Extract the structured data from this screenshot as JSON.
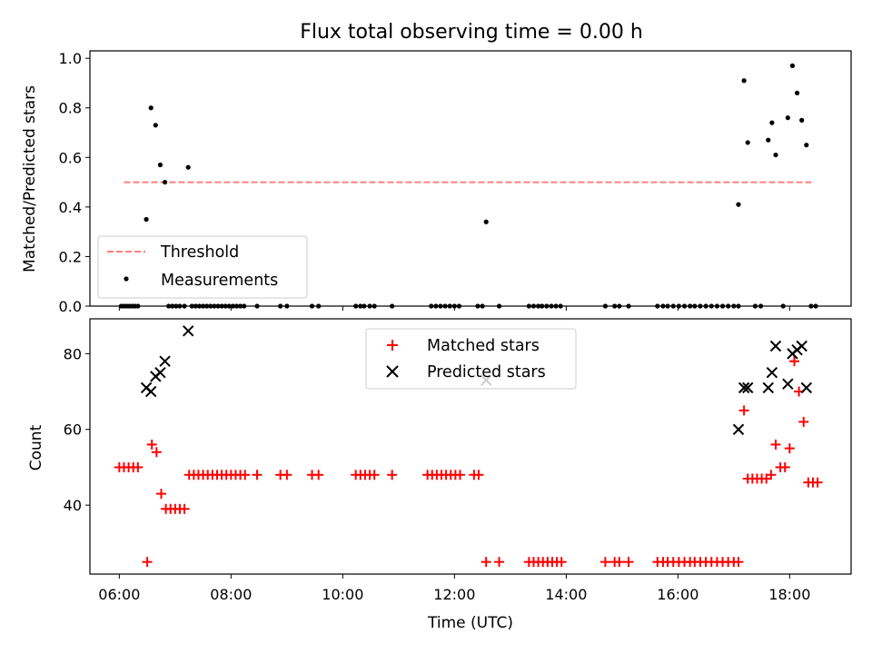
{
  "title": "Flux total observing time = 0.00 h",
  "chart_data": [
    {
      "type": "scatter",
      "ylabel": "Matched/Predicted stars",
      "ylim": [
        0,
        1.03
      ],
      "yticks": [
        0.0,
        0.2,
        0.4,
        0.6,
        0.8,
        1.0
      ],
      "yticklabels": [
        "0.0",
        "0.2",
        "0.4",
        "0.6",
        "0.8",
        "1.0"
      ],
      "legend_loc": "lower left",
      "series": [
        {
          "name": "Threshold",
          "kind": "line",
          "style": "dashed",
          "color": "#ff7f7f",
          "x": [
            "06:05",
            "18:25"
          ],
          "y": [
            0.5,
            0.5
          ]
        },
        {
          "name": "Measurements",
          "kind": "point",
          "color": "#000000",
          "points": [
            [
              "06:02",
              0
            ],
            [
              "06:05",
              0
            ],
            [
              "06:08",
              0
            ],
            [
              "06:11",
              0
            ],
            [
              "06:14",
              0
            ],
            [
              "06:17",
              0
            ],
            [
              "06:20",
              0
            ],
            [
              "06:29",
              0.35
            ],
            [
              "06:34",
              0.8
            ],
            [
              "06:39",
              0.73
            ],
            [
              "06:44",
              0.57
            ],
            [
              "06:49",
              0.5
            ],
            [
              "07:14",
              0.56
            ],
            [
              "06:53",
              0
            ],
            [
              "06:57",
              0
            ],
            [
              "07:01",
              0
            ],
            [
              "07:05",
              0
            ],
            [
              "07:10",
              0
            ],
            [
              "07:18",
              0
            ],
            [
              "07:22",
              0
            ],
            [
              "07:26",
              0
            ],
            [
              "07:30",
              0
            ],
            [
              "07:34",
              0
            ],
            [
              "07:38",
              0
            ],
            [
              "07:42",
              0
            ],
            [
              "07:46",
              0
            ],
            [
              "07:50",
              0
            ],
            [
              "07:54",
              0
            ],
            [
              "07:58",
              0
            ],
            [
              "08:02",
              0
            ],
            [
              "08:06",
              0
            ],
            [
              "08:10",
              0
            ],
            [
              "08:14",
              0
            ],
            [
              "08:28",
              0
            ],
            [
              "08:53",
              0
            ],
            [
              "09:00",
              0
            ],
            [
              "09:27",
              0
            ],
            [
              "09:34",
              0
            ],
            [
              "10:14",
              0
            ],
            [
              "10:19",
              0
            ],
            [
              "10:23",
              0
            ],
            [
              "10:29",
              0
            ],
            [
              "10:34",
              0
            ],
            [
              "10:53",
              0
            ],
            [
              "11:35",
              0
            ],
            [
              "11:40",
              0
            ],
            [
              "11:45",
              0
            ],
            [
              "11:50",
              0
            ],
            [
              "11:55",
              0
            ],
            [
              "12:00",
              0
            ],
            [
              "12:05",
              0
            ],
            [
              "12:25",
              0
            ],
            [
              "12:30",
              0
            ],
            [
              "12:34",
              0.34
            ],
            [
              "12:48",
              0
            ],
            [
              "13:20",
              0
            ],
            [
              "13:25",
              0
            ],
            [
              "13:30",
              0
            ],
            [
              "13:34",
              0
            ],
            [
              "13:39",
              0
            ],
            [
              "13:44",
              0
            ],
            [
              "13:49",
              0
            ],
            [
              "13:54",
              0
            ],
            [
              "14:42",
              0
            ],
            [
              "14:52",
              0
            ],
            [
              "14:57",
              0
            ],
            [
              "15:07",
              0
            ],
            [
              "15:38",
              0
            ],
            [
              "15:44",
              0
            ],
            [
              "15:49",
              0
            ],
            [
              "15:55",
              0
            ],
            [
              "16:01",
              0
            ],
            [
              "16:07",
              0
            ],
            [
              "16:13",
              0
            ],
            [
              "16:18",
              0
            ],
            [
              "16:24",
              0
            ],
            [
              "16:30",
              0
            ],
            [
              "16:36",
              0
            ],
            [
              "16:42",
              0
            ],
            [
              "16:48",
              0
            ],
            [
              "16:54",
              0
            ],
            [
              "17:00",
              0
            ],
            [
              "17:05",
              0
            ],
            [
              "17:05",
              0.41
            ],
            [
              "17:11",
              0.91
            ],
            [
              "17:15",
              0.66
            ],
            [
              "17:23",
              0
            ],
            [
              "17:29",
              0
            ],
            [
              "17:37",
              0.67
            ],
            [
              "17:41",
              0.74
            ],
            [
              "17:45",
              0.61
            ],
            [
              "17:53",
              0
            ],
            [
              "17:58",
              0.76
            ],
            [
              "18:03",
              0.97
            ],
            [
              "18:08",
              0.86
            ],
            [
              "18:13",
              0.75
            ],
            [
              "18:18",
              0.65
            ],
            [
              "18:23",
              0
            ],
            [
              "18:28",
              0
            ]
          ]
        }
      ]
    },
    {
      "type": "scatter",
      "xlabel": "Time (UTC)",
      "ylabel": "Count",
      "xticklabels": [
        "06:00",
        "08:00",
        "10:00",
        "12:00",
        "14:00",
        "16:00",
        "18:00"
      ],
      "yticks": [
        40,
        60,
        80
      ],
      "yticklabels": [
        "40",
        "60",
        "80"
      ],
      "ylim": [
        21.8,
        89.2
      ],
      "legend_loc": "upper center",
      "series": [
        {
          "name": "Matched stars",
          "marker": "+",
          "color": "#ff0000",
          "points": [
            [
              "06:00",
              50
            ],
            [
              "06:05",
              50
            ],
            [
              "06:10",
              50
            ],
            [
              "06:15",
              50
            ],
            [
              "06:20",
              50
            ],
            [
              "06:30",
              25
            ],
            [
              "06:35",
              56
            ],
            [
              "06:40",
              54
            ],
            [
              "06:45",
              43
            ],
            [
              "06:50",
              39
            ],
            [
              "06:55",
              39
            ],
            [
              "07:00",
              39
            ],
            [
              "07:05",
              39
            ],
            [
              "07:10",
              39
            ],
            [
              "07:15",
              48
            ],
            [
              "07:20",
              48
            ],
            [
              "07:25",
              48
            ],
            [
              "07:30",
              48
            ],
            [
              "07:35",
              48
            ],
            [
              "07:40",
              48
            ],
            [
              "07:45",
              48
            ],
            [
              "07:50",
              48
            ],
            [
              "07:55",
              48
            ],
            [
              "08:00",
              48
            ],
            [
              "08:05",
              48
            ],
            [
              "08:10",
              48
            ],
            [
              "08:15",
              48
            ],
            [
              "08:28",
              48
            ],
            [
              "08:53",
              48
            ],
            [
              "09:00",
              48
            ],
            [
              "09:27",
              48
            ],
            [
              "09:34",
              48
            ],
            [
              "10:14",
              48
            ],
            [
              "10:19",
              48
            ],
            [
              "10:24",
              48
            ],
            [
              "10:29",
              48
            ],
            [
              "10:34",
              48
            ],
            [
              "10:53",
              48
            ],
            [
              "11:31",
              48
            ],
            [
              "11:36",
              48
            ],
            [
              "11:41",
              48
            ],
            [
              "11:46",
              48
            ],
            [
              "11:51",
              48
            ],
            [
              "11:56",
              48
            ],
            [
              "12:01",
              48
            ],
            [
              "12:06",
              48
            ],
            [
              "12:21",
              48
            ],
            [
              "12:26",
              48
            ],
            [
              "12:34",
              25
            ],
            [
              "12:48",
              25
            ],
            [
              "13:20",
              25
            ],
            [
              "13:25",
              25
            ],
            [
              "13:30",
              25
            ],
            [
              "13:35",
              25
            ],
            [
              "13:40",
              25
            ],
            [
              "13:45",
              25
            ],
            [
              "13:50",
              25
            ],
            [
              "13:55",
              25
            ],
            [
              "14:42",
              25
            ],
            [
              "14:52",
              25
            ],
            [
              "14:57",
              25
            ],
            [
              "15:07",
              25
            ],
            [
              "15:38",
              25
            ],
            [
              "15:44",
              25
            ],
            [
              "15:49",
              25
            ],
            [
              "15:55",
              25
            ],
            [
              "16:01",
              25
            ],
            [
              "16:07",
              25
            ],
            [
              "16:13",
              25
            ],
            [
              "16:18",
              25
            ],
            [
              "16:24",
              25
            ],
            [
              "16:30",
              25
            ],
            [
              "16:36",
              25
            ],
            [
              "16:42",
              25
            ],
            [
              "16:48",
              25
            ],
            [
              "16:54",
              25
            ],
            [
              "17:00",
              25
            ],
            [
              "17:05",
              25
            ],
            [
              "17:11",
              65
            ],
            [
              "17:15",
              47
            ],
            [
              "17:20",
              47
            ],
            [
              "17:25",
              47
            ],
            [
              "17:30",
              47
            ],
            [
              "17:35",
              47
            ],
            [
              "17:40",
              48
            ],
            [
              "17:45",
              56
            ],
            [
              "17:50",
              50
            ],
            [
              "17:55",
              50
            ],
            [
              "18:00",
              55
            ],
            [
              "18:05",
              78
            ],
            [
              "18:10",
              70
            ],
            [
              "18:15",
              62
            ],
            [
              "18:20",
              46
            ],
            [
              "18:25",
              46
            ],
            [
              "18:30",
              46
            ]
          ]
        },
        {
          "name": "Predicted stars",
          "marker": "x",
          "color": "#000000",
          "points": [
            [
              "06:29",
              71
            ],
            [
              "06:34",
              70
            ],
            [
              "06:39",
              74
            ],
            [
              "06:44",
              75
            ],
            [
              "06:49",
              78
            ],
            [
              "07:14",
              86
            ],
            [
              "12:34",
              73
            ],
            [
              "17:05",
              60
            ],
            [
              "17:11",
              71
            ],
            [
              "17:15",
              71
            ],
            [
              "17:37",
              71
            ],
            [
              "17:41",
              75
            ],
            [
              "17:45",
              82
            ],
            [
              "17:58",
              72
            ],
            [
              "18:03",
              80
            ],
            [
              "18:08",
              81
            ],
            [
              "18:13",
              82
            ],
            [
              "18:18",
              71
            ]
          ]
        }
      ]
    }
  ]
}
